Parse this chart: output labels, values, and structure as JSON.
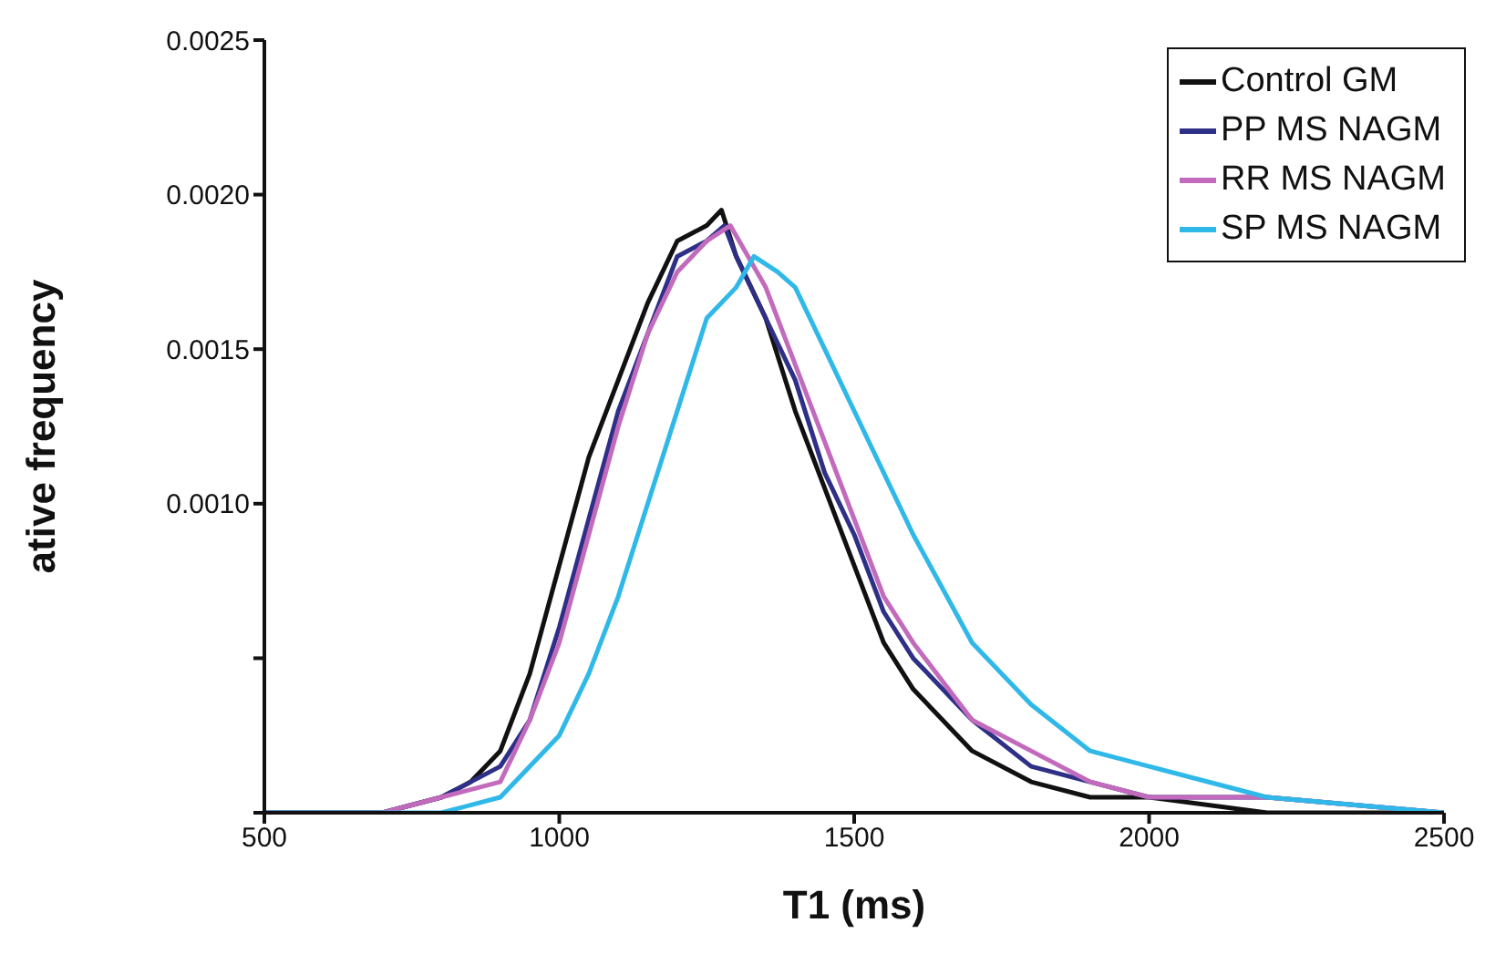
{
  "chart_data": {
    "type": "line",
    "xlabel": "T1 (ms)",
    "ylabel": "ative frequency",
    "xlim": [
      500,
      2500
    ],
    "xticks": [
      500,
      1000,
      1500,
      2000,
      2500
    ],
    "ylim": [
      0,
      0.0025
    ],
    "yticks": [
      {
        "value": 0,
        "label": null
      },
      {
        "value": 0.0005,
        "label": null
      },
      {
        "value": 0.001,
        "label": "0.0010"
      },
      {
        "value": 0.0015,
        "label": "0.0015"
      },
      {
        "value": 0.002,
        "label": "0.0020"
      },
      {
        "value": 0.0025,
        "label": "0.0025"
      }
    ],
    "legend": "top right",
    "marker": "none",
    "line_style": "solid",
    "series": [
      {
        "name": "Control GM",
        "color": "#111111",
        "x": [
          500,
          700,
          800,
          850,
          900,
          950,
          1000,
          1050,
          1100,
          1150,
          1200,
          1250,
          1275,
          1300,
          1350,
          1400,
          1450,
          1500,
          1550,
          1600,
          1700,
          1800,
          1900,
          2000,
          2200,
          2500
        ],
        "values": [
          0,
          0,
          5e-05,
          0.0001,
          0.0002,
          0.00045,
          0.0008,
          0.00115,
          0.0014,
          0.00165,
          0.00185,
          0.0019,
          0.00195,
          0.0018,
          0.0016,
          0.0013,
          0.00105,
          0.0008,
          0.00055,
          0.0004,
          0.0002,
          0.0001,
          5e-05,
          5e-05,
          0,
          0
        ]
      },
      {
        "name": "PP MS NAGM",
        "color": "#2e2f86",
        "x": [
          500,
          700,
          800,
          900,
          950,
          1000,
          1050,
          1100,
          1150,
          1200,
          1250,
          1280,
          1300,
          1350,
          1400,
          1450,
          1500,
          1550,
          1600,
          1700,
          1800,
          1900,
          2000,
          2200,
          2500
        ],
        "values": [
          0,
          0,
          5e-05,
          0.00015,
          0.0003,
          0.0006,
          0.00095,
          0.0013,
          0.00155,
          0.0018,
          0.00185,
          0.0019,
          0.0018,
          0.0016,
          0.0014,
          0.0011,
          0.0009,
          0.00065,
          0.0005,
          0.0003,
          0.00015,
          0.0001,
          5e-05,
          5e-05,
          0
        ]
      },
      {
        "name": "RR MS NAGM",
        "color": "#c26bbd",
        "x": [
          500,
          700,
          800,
          900,
          950,
          1000,
          1050,
          1100,
          1150,
          1200,
          1250,
          1290,
          1350,
          1400,
          1450,
          1500,
          1550,
          1600,
          1700,
          1800,
          1900,
          2000,
          2200,
          2500
        ],
        "values": [
          0,
          0,
          5e-05,
          0.0001,
          0.0003,
          0.00055,
          0.0009,
          0.00125,
          0.00155,
          0.00175,
          0.00185,
          0.0019,
          0.0017,
          0.00145,
          0.0012,
          0.00095,
          0.0007,
          0.00055,
          0.0003,
          0.0002,
          0.0001,
          5e-05,
          5e-05,
          0
        ]
      },
      {
        "name": "SP MS NAGM",
        "color": "#2fb8e8",
        "x": [
          500,
          700,
          800,
          900,
          1000,
          1050,
          1100,
          1150,
          1200,
          1250,
          1300,
          1330,
          1370,
          1400,
          1450,
          1500,
          1550,
          1600,
          1700,
          1800,
          1900,
          2000,
          2200,
          2500
        ],
        "values": [
          0,
          0,
          0,
          5e-05,
          0.00025,
          0.00045,
          0.0007,
          0.001,
          0.0013,
          0.0016,
          0.0017,
          0.0018,
          0.00175,
          0.0017,
          0.0015,
          0.0013,
          0.0011,
          0.0009,
          0.00055,
          0.00035,
          0.0002,
          0.00015,
          5e-05,
          0
        ]
      }
    ]
  }
}
